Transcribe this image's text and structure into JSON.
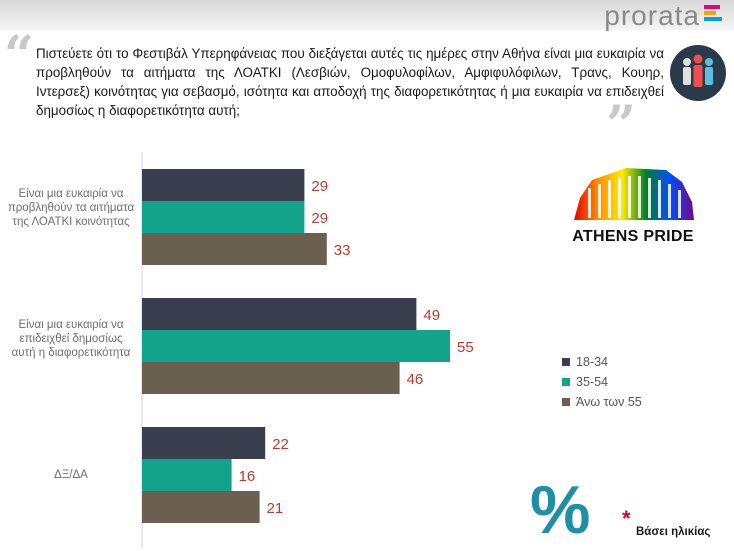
{
  "brand": {
    "name": "prorata"
  },
  "question": "Πιστεύετε ότι το Φεστιβάλ Υπερηφάνειας που διεξάγεται αυτές τις ημέρες στην Αθήνα είναι μια ευκαιρία να προβληθούν τα αιτήματα της ΛΟΑΤΚΙ (Λεσβιών, Ομοφυλοφίλων, Αμφιφυλόφιλων, Τρανς, Κουηρ, Ιντερσεξ) κοινότητας για σεβασμό, ισότητα και αποδοχή της διαφορετικότητας ή μια ευκαιρία να επιδειχθεί δημοσίως η διαφορετικότητα αυτή;",
  "logo_text": "ATHENS PRIDE",
  "percent_symbol": "%",
  "base_note": "Βάσει ηλικίας",
  "colors": {
    "s1": "#3a3f4f",
    "s2": "#12a38a",
    "s3": "#6b5f4f",
    "value_label": "#c0392b"
  },
  "chart_data": {
    "type": "bar",
    "orientation": "horizontal",
    "categories": [
      "Είναι μια ευκαιρία να προβληθούν τα αιτήματα της ΛΟΑΤΚΙ κοινότητας",
      "Είναι μια ευκαιρία να επιδειχθεί δημοσίως αυτή η διαφορετικότητα",
      "ΔΞ/ΔΑ"
    ],
    "series": [
      {
        "name": "18-34",
        "values": [
          29,
          49,
          22
        ]
      },
      {
        "name": "35-54",
        "values": [
          29,
          55,
          16
        ]
      },
      {
        "name": "Άνω των 55",
        "values": [
          33,
          46,
          21
        ]
      }
    ],
    "title": "",
    "xlabel": "",
    "ylabel": "",
    "xlim": [
      0,
      60
    ],
    "legend": "right",
    "grid": false
  }
}
